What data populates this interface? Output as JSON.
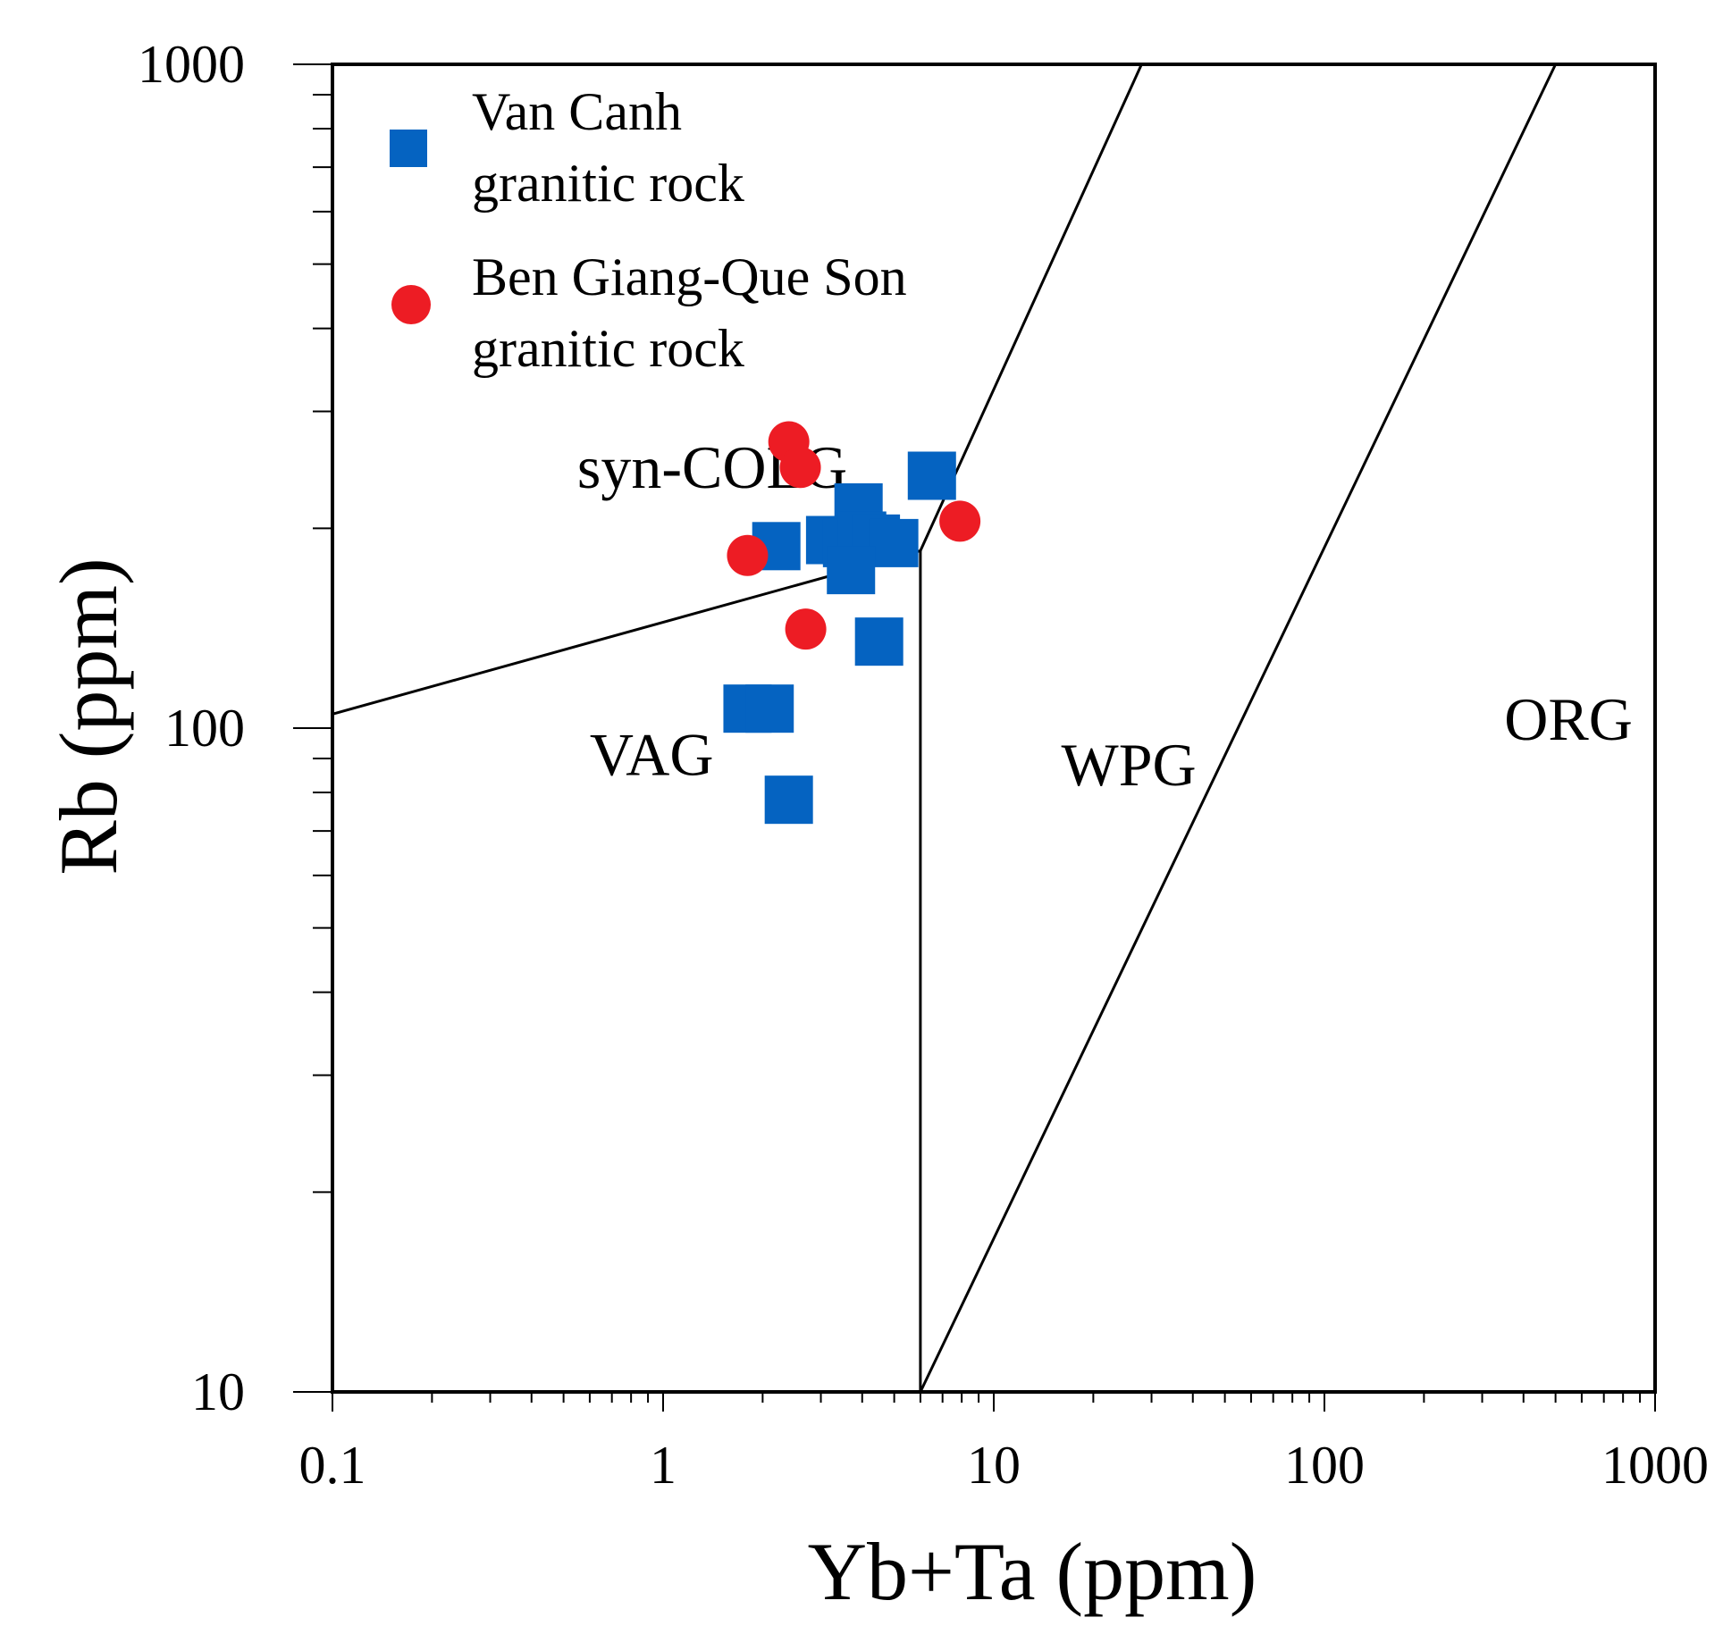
{
  "chart_data": {
    "type": "scatter",
    "xlabel": "Yb+Ta (ppm)",
    "ylabel": "Rb (ppm)",
    "xscale": "log",
    "yscale": "log",
    "xlim": [
      0.1,
      1000
    ],
    "ylim": [
      10,
      1000
    ],
    "x_tick_labels": [
      "0.1",
      "1",
      "10",
      "100",
      "1000"
    ],
    "y_tick_labels": [
      "10",
      "100",
      "1000"
    ],
    "x_ticks": [
      0.1,
      1,
      10,
      100,
      1000
    ],
    "y_ticks": [
      10,
      100,
      1000
    ],
    "grid": false,
    "legend_position": "top-left",
    "series": [
      {
        "name": "Van Canh granitic rock",
        "marker": "square",
        "color": "#0563C1",
        "points": [
          {
            "x": 6.5,
            "y": 240
          },
          {
            "x": 3.9,
            "y": 215
          },
          {
            "x": 2.2,
            "y": 188
          },
          {
            "x": 3.2,
            "y": 192
          },
          {
            "x": 3.6,
            "y": 190
          },
          {
            "x": 4.0,
            "y": 195
          },
          {
            "x": 4.4,
            "y": 193
          },
          {
            "x": 5.0,
            "y": 190
          },
          {
            "x": 3.7,
            "y": 173
          },
          {
            "x": 4.5,
            "y": 135
          },
          {
            "x": 1.8,
            "y": 107
          },
          {
            "x": 2.1,
            "y": 107
          },
          {
            "x": 2.4,
            "y": 78
          }
        ]
      },
      {
        "name": "Ben Giang-Que Son granitic rock",
        "marker": "circle",
        "color": "#ED1C24",
        "points": [
          {
            "x": 2.4,
            "y": 270
          },
          {
            "x": 2.6,
            "y": 247
          },
          {
            "x": 7.9,
            "y": 205
          },
          {
            "x": 1.8,
            "y": 182
          },
          {
            "x": 2.7,
            "y": 141
          }
        ]
      }
    ],
    "boundaries": [
      [
        [
          0.1,
          105
        ],
        [
          6.0,
          185
        ],
        [
          28,
          1000
        ]
      ],
      [
        [
          6.0,
          185
        ],
        [
          6.0,
          10
        ]
      ],
      [
        [
          6.0,
          10
        ],
        [
          500,
          1000
        ]
      ]
    ],
    "fields": [
      {
        "label": "syn-COLG",
        "x": 0.55,
        "y": 230
      },
      {
        "label": "VAG",
        "x": 0.6,
        "y": 85
      },
      {
        "label": "WPG",
        "x": 16,
        "y": 82
      },
      {
        "label": "ORG",
        "x": 350,
        "y": 96
      }
    ],
    "legend": {
      "entries": [
        {
          "lines": [
            "Van Canh",
            "granitic rock"
          ]
        },
        {
          "lines": [
            "Ben Giang-Que Son",
            "granitic rock"
          ]
        }
      ]
    }
  }
}
